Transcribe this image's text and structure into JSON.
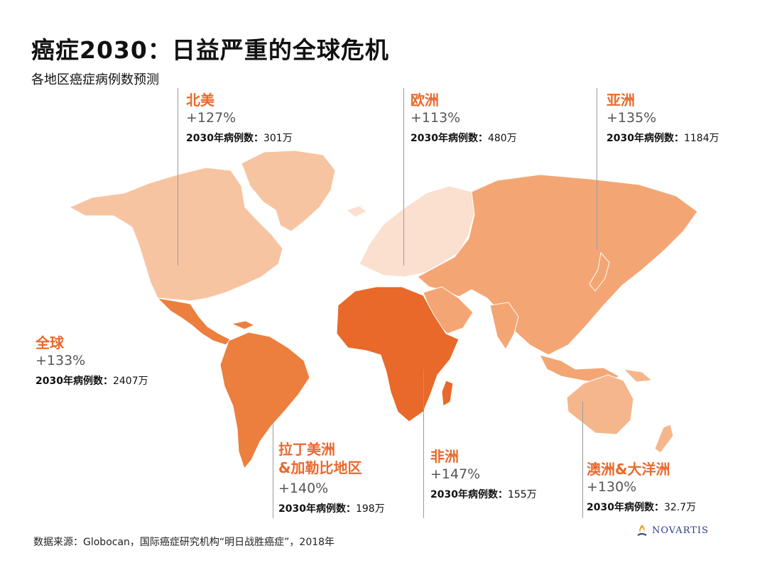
{
  "title": "癌症2030：日益严重的全球危机",
  "subtitle": "各地区癌症病例数预测",
  "cases_label": "2030年病例数：",
  "regions": {
    "north_america": {
      "name": "北美",
      "growth": "+127%",
      "cases": "301万",
      "color": "#f7c4a2"
    },
    "europe": {
      "name": "欧洲",
      "growth": "+113%",
      "cases": "480万",
      "color": "#fbe0cf"
    },
    "asia": {
      "name": "亚洲",
      "growth": "+135%",
      "cases": "1184万",
      "color": "#f3a674"
    },
    "global": {
      "name": "全球",
      "growth": "+133%",
      "cases": "2407万"
    },
    "latin_america": {
      "name_line1": "拉丁美洲",
      "name_line2": "&加勒比地区",
      "growth": "+140%",
      "cases": "198万",
      "color": "#ec7f3d"
    },
    "africa": {
      "name": "非洲",
      "growth": "+147%",
      "cases": "155万",
      "color": "#e8692a"
    },
    "oceania": {
      "name": "澳洲&大洋洲",
      "growth": "+130%",
      "cases": "32.7万",
      "color": "#f5b68c"
    }
  },
  "source": "数据来源：Globocan，国际癌症研究机构“明日战胜癌症”，2018年",
  "logo": {
    "text": "NOVARTIS",
    "color": "#2b3e8c",
    "icon": "novartis-flame-icon"
  },
  "accent_color": "#e9692c"
}
